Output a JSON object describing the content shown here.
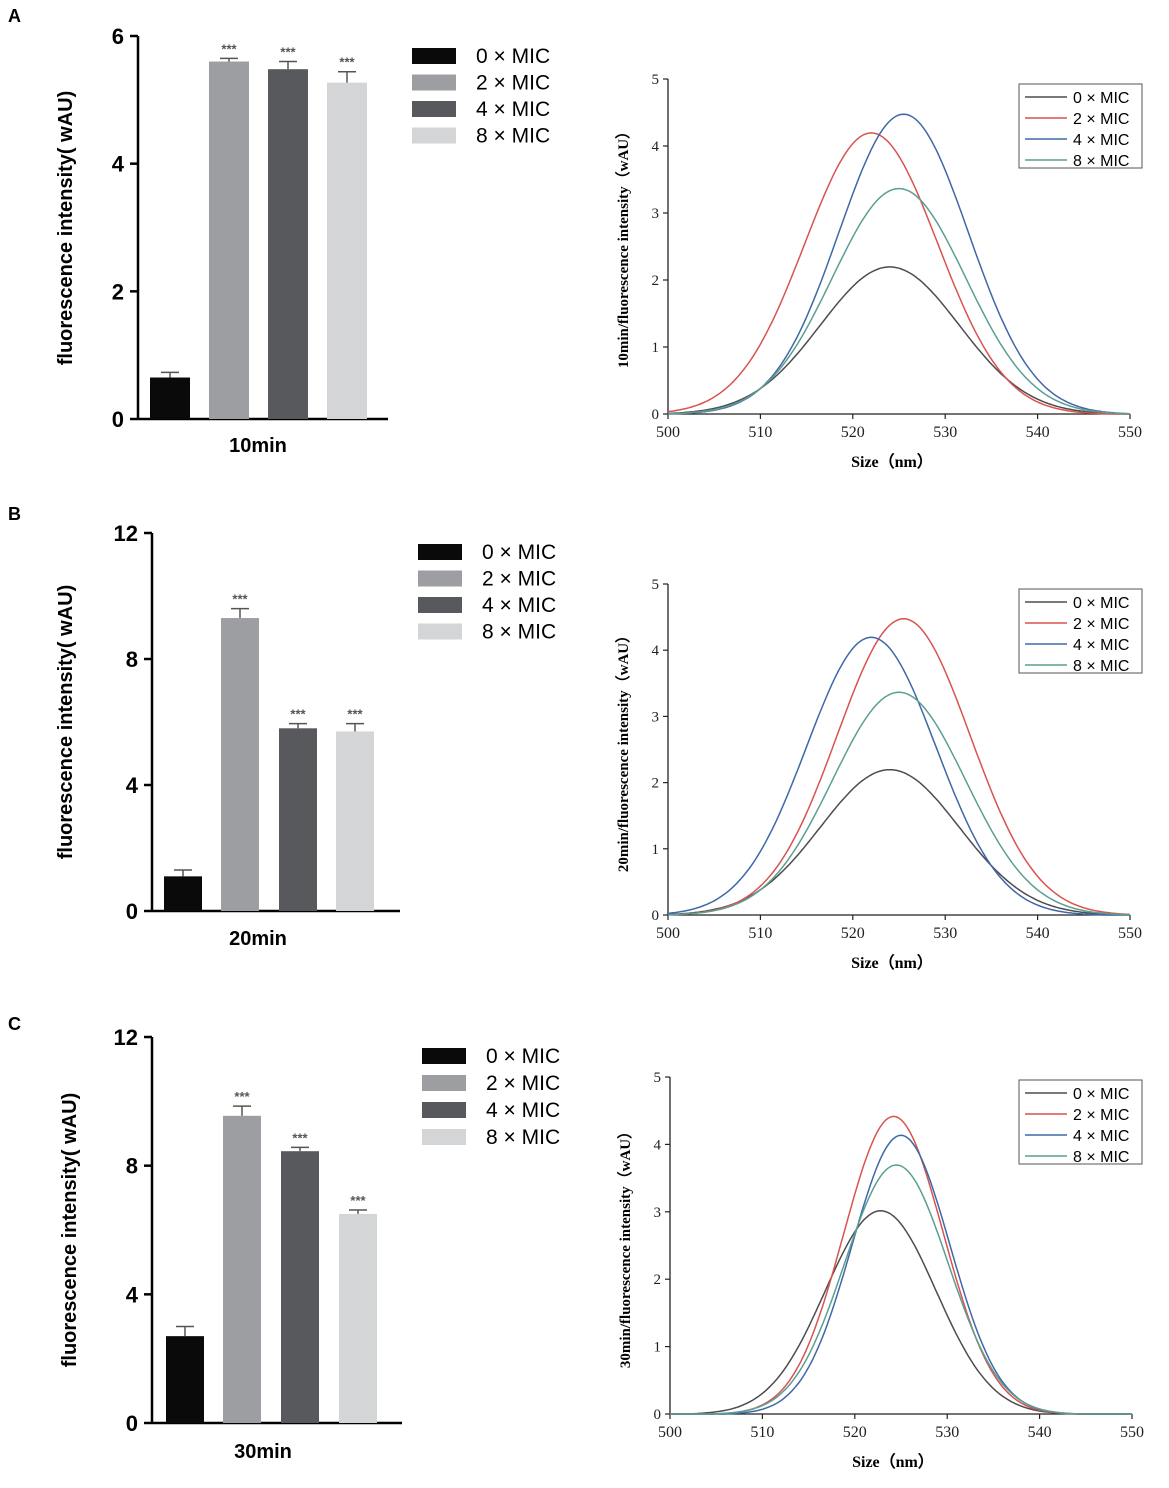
{
  "figure": {
    "panel_letters": [
      "A",
      "B",
      "C"
    ]
  },
  "chart_data": [
    {
      "panel": "A",
      "type": "bar",
      "title": "",
      "xlabel": "10min",
      "ylabel": "fluorescence intensity( wAU)",
      "ylim": [
        0,
        6
      ],
      "yticks": [
        "0",
        "2",
        "4",
        "6"
      ],
      "categories": [
        "0 × MIC",
        "2 × MIC",
        "4 × MIC",
        "8 × MIC"
      ],
      "values": [
        0.65,
        5.6,
        5.48,
        5.27
      ],
      "errors": [
        0.08,
        0.05,
        0.12,
        0.17
      ],
      "significance": [
        "",
        "***",
        "***",
        "***"
      ],
      "colors": [
        "#0a0a0a",
        "#9d9ea2",
        "#58595d",
        "#d4d5d7"
      ],
      "legend": [
        "0 × MIC",
        "2 × MIC",
        "4 × MIC",
        "8 × MIC"
      ]
    },
    {
      "panel": "A",
      "type": "line",
      "xlabel": "Size（nm）",
      "ylabel": "10min/fluorescence intensity（wAU）",
      "xlim": [
        500,
        550
      ],
      "ylim": [
        0,
        5
      ],
      "xticks": [
        "500",
        "510",
        "520",
        "530",
        "540",
        "550"
      ],
      "yticks": [
        "0",
        "1",
        "2",
        "3",
        "4",
        "5"
      ],
      "series": [
        {
          "name": "0 × MIC",
          "color": "#4d4d4d",
          "peak_x": 524,
          "peak_y": 2.2,
          "width": 7.5
        },
        {
          "name": "2 × MIC",
          "color": "#d9534f",
          "peak_x": 522,
          "peak_y": 4.2,
          "width": 7.2
        },
        {
          "name": "4 × MIC",
          "color": "#3f68a8",
          "peak_x": 525.5,
          "peak_y": 4.48,
          "width": 7.0
        },
        {
          "name": "8 × MIC",
          "color": "#5c9e92",
          "peak_x": 525,
          "peak_y": 3.37,
          "width": 7.2
        }
      ]
    },
    {
      "panel": "B",
      "type": "bar",
      "title": "",
      "xlabel": "20min",
      "ylabel": "fluorescence intensity( wAU)",
      "ylim": [
        0,
        12
      ],
      "yticks": [
        "0",
        "4",
        "8",
        "12"
      ],
      "categories": [
        "0 × MIC",
        "2 × MIC",
        "4 × MIC",
        "8 × MIC"
      ],
      "values": [
        1.1,
        9.3,
        5.8,
        5.7
      ],
      "errors": [
        0.2,
        0.3,
        0.15,
        0.25
      ],
      "significance": [
        "",
        "***",
        "***",
        "***"
      ],
      "colors": [
        "#0a0a0a",
        "#9d9ea2",
        "#58595d",
        "#d4d5d7"
      ],
      "legend": [
        "0 × MIC",
        "2 × MIC",
        "4 × MIC",
        "8 × MIC"
      ]
    },
    {
      "panel": "B",
      "type": "line",
      "xlabel": "Size（nm）",
      "ylabel": "20min/fluorescence intensity（wAU）",
      "xlim": [
        500,
        550
      ],
      "ylim": [
        0,
        5
      ],
      "xticks": [
        "500",
        "510",
        "520",
        "530",
        "540",
        "550"
      ],
      "yticks": [
        "0",
        "1",
        "2",
        "3",
        "4",
        "5"
      ],
      "series": [
        {
          "name": "0 × MIC",
          "color": "#4d4d4d",
          "peak_x": 524,
          "peak_y": 2.2,
          "width": 7.5
        },
        {
          "name": "2 × MIC",
          "color": "#d9534f",
          "peak_x": 525.5,
          "peak_y": 4.48,
          "width": 7.2
        },
        {
          "name": "4 × MIC",
          "color": "#3f68a8",
          "peak_x": 522,
          "peak_y": 4.2,
          "width": 7.0
        },
        {
          "name": "8 × MIC",
          "color": "#5c9e92",
          "peak_x": 525,
          "peak_y": 3.37,
          "width": 7.2
        }
      ]
    },
    {
      "panel": "C",
      "type": "bar",
      "title": "",
      "xlabel": "30min",
      "ylabel": "fluorescence intensity( wAU)",
      "ylim": [
        0,
        12
      ],
      "yticks": [
        "0",
        "4",
        "8",
        "12"
      ],
      "categories": [
        "0 × MIC",
        "2 × MIC",
        "4 × MIC",
        "8 × MIC"
      ],
      "values": [
        2.7,
        9.55,
        8.45,
        6.5
      ],
      "errors": [
        0.3,
        0.3,
        0.12,
        0.12
      ],
      "significance": [
        "",
        "***",
        "***",
        "***"
      ],
      "colors": [
        "#0a0a0a",
        "#9d9ea2",
        "#58595d",
        "#d4d5d7"
      ],
      "legend": [
        "0 × MIC",
        "2 × MIC",
        "4 × MIC",
        "8 × MIC"
      ]
    },
    {
      "panel": "C",
      "type": "line",
      "xlabel": "Size（nm）",
      "ylabel": "30min/fluorescence intensity（wAU）",
      "xlim": [
        500,
        550
      ],
      "ylim": [
        0,
        5
      ],
      "xticks": [
        "500",
        "510",
        "520",
        "530",
        "540",
        "550"
      ],
      "yticks": [
        "0",
        "1",
        "2",
        "3",
        "4",
        "5"
      ],
      "series": [
        {
          "name": "0 × MIC",
          "color": "#4d4d4d",
          "peak_x": 522.8,
          "peak_y": 3.02,
          "width": 6.0
        },
        {
          "name": "2 × MIC",
          "color": "#d9534f",
          "peak_x": 524.2,
          "peak_y": 4.42,
          "width": 5.4
        },
        {
          "name": "4 × MIC",
          "color": "#3f68a8",
          "peak_x": 525,
          "peak_y": 4.14,
          "width": 5.3
        },
        {
          "name": "8 × MIC",
          "color": "#5c9e92",
          "peak_x": 524.5,
          "peak_y": 3.7,
          "width": 5.6
        }
      ]
    }
  ]
}
